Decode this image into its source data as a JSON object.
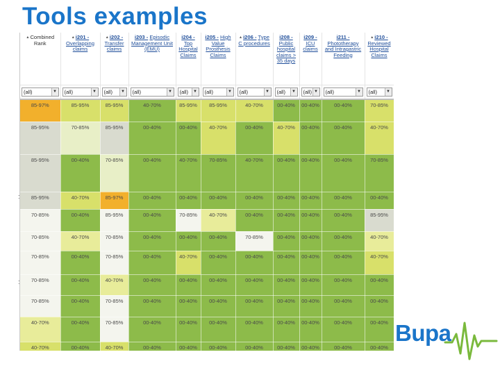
{
  "slide": {
    "title": "Tools examples"
  },
  "brand": {
    "name": "Bupa",
    "color": "#1a75c9",
    "line_color": "#7ab93c"
  },
  "table": {
    "headers": [
      {
        "code": "",
        "text": "Combined Rank",
        "link": false,
        "sortable": true
      },
      {
        "code": "i201 -",
        "text": "Overlapping claims",
        "link": true,
        "sortable": true
      },
      {
        "code": "i202 -",
        "text": "Transfer claims",
        "link": true,
        "sortable": true
      },
      {
        "code": "i203 -",
        "text": "Episodic Management Unit (EMU)",
        "link": true,
        "sortable": false
      },
      {
        "code": "i204 -",
        "text": "Top Hospital Claims",
        "link": true,
        "sortable": false
      },
      {
        "code": "i205 -",
        "text": "High Value Prosthesis Claims",
        "link": true,
        "sortable": false
      },
      {
        "code": "i206 -",
        "text": "Type C procedures",
        "link": true,
        "sortable": true
      },
      {
        "code": "i208 -",
        "text": "Public hospital claims > 35 days",
        "link": true,
        "sortable": false
      },
      {
        "code": "i209 -",
        "text": "ICU claims",
        "link": true,
        "sortable": false
      },
      {
        "code": "i211 -",
        "text": "Phototherapy and Intragastric Feeding",
        "link": true,
        "sortable": false
      },
      {
        "code": "i210 -",
        "text": "Reviewed Hospital Claims",
        "link": true,
        "sortable": true
      }
    ],
    "filters": [
      "(all)",
      "(all)",
      "(all)",
      "(all)",
      "(all)",
      "(all)",
      "(all)",
      "(all)",
      "(all)",
      "(all)",
      "(all)"
    ],
    "rows": [
      {
        "values": [
          "85-97%",
          "85-95%",
          "85-95%",
          "40-70%",
          "85-95%",
          "85-95%",
          "40-70%",
          "00-40%",
          "00-40%",
          "00-40%",
          "70-85%"
        ],
        "colors": [
          "orange",
          "yellow",
          "yellow",
          "green",
          "yellow",
          "yellow",
          "yellow",
          "green",
          "green",
          "green",
          "yellow"
        ]
      },
      {
        "values": [
          "85-95%",
          "70-85%",
          "85-95%",
          "00-40%",
          "00-40%",
          "40-70%",
          "00-40%",
          "40-70%",
          "00-40%",
          "00-40%",
          "40-70%"
        ],
        "colors": [
          "grey",
          "cream",
          "grey",
          "green",
          "green",
          "yellow",
          "green",
          "yellow",
          "green",
          "green",
          "yellow"
        ]
      },
      {
        "values": [
          "85-95%",
          "00-40%",
          "70-85%",
          "00-40%",
          "40-70%",
          "70-85%",
          "40-70%",
          "00-40%",
          "00-40%",
          "00-40%",
          "70-85%"
        ],
        "colors": [
          "grey",
          "green",
          "cream",
          "green",
          "green",
          "green",
          "green",
          "green",
          "green",
          "green",
          "green"
        ]
      },
      {
        "values": [
          "85-95%",
          "40-70%",
          "85-97%",
          "00-40%",
          "00-40%",
          "00-40%",
          "00-40%",
          "00-40%",
          "00-40%",
          "00-40%",
          "00-40%"
        ],
        "colors": [
          "grey",
          "yellow",
          "orange",
          "green",
          "green",
          "green",
          "green",
          "green",
          "green",
          "green",
          "green"
        ]
      },
      {
        "values": [
          "70-85%",
          "00-40%",
          "85-95%",
          "00-40%",
          "70-85%",
          "40-70%",
          "00-40%",
          "00-40%",
          "00-40%",
          "00-40%",
          "85-95%"
        ],
        "colors": [
          "white",
          "green",
          "white",
          "green",
          "white",
          "lyellow",
          "green",
          "green",
          "green",
          "green",
          "grey"
        ]
      },
      {
        "values": [
          "70-85%",
          "40-70%",
          "70-85%",
          "00-40%",
          "00-40%",
          "00-40%",
          "70-85%",
          "00-40%",
          "00-40%",
          "00-40%",
          "40-70%"
        ],
        "colors": [
          "white",
          "lyellow",
          "white",
          "green",
          "green",
          "green",
          "white",
          "green",
          "green",
          "green",
          "lyellow"
        ]
      },
      {
        "values": [
          "70-85%",
          "00-40%",
          "70-85%",
          "00-40%",
          "40-70%",
          "00-40%",
          "00-40%",
          "00-40%",
          "00-40%",
          "00-40%",
          "40-70%"
        ],
        "colors": [
          "white",
          "green",
          "white",
          "green",
          "yellow",
          "green",
          "green",
          "green",
          "green",
          "green",
          "yellow"
        ]
      },
      {
        "values": [
          "70-85%",
          "00-40%",
          "40-70%",
          "00-40%",
          "00-40%",
          "00-40%",
          "00-40%",
          "00-40%",
          "00-40%",
          "00-40%",
          "00-40%"
        ],
        "colors": [
          "white",
          "green",
          "lyellow",
          "green",
          "green",
          "green",
          "green",
          "green",
          "green",
          "green",
          "green"
        ]
      },
      {
        "values": [
          "70-85%",
          "00-40%",
          "70-85%",
          "00-40%",
          "00-40%",
          "00-40%",
          "00-40%",
          "00-40%",
          "00-40%",
          "00-40%",
          "00-40%"
        ],
        "colors": [
          "white",
          "green",
          "white",
          "green",
          "green",
          "green",
          "green",
          "green",
          "green",
          "green",
          "green"
        ]
      },
      {
        "values": [
          "40-70%",
          "00-40%",
          "70-85%",
          "00-40%",
          "00-40%",
          "00-40%",
          "00-40%",
          "00-40%",
          "00-40%",
          "00-40%",
          "00-40%"
        ],
        "colors": [
          "lyellow",
          "green",
          "white",
          "green",
          "green",
          "green",
          "green",
          "green",
          "green",
          "green",
          "green"
        ]
      },
      {
        "values": [
          "40-70%",
          "00-40%",
          "40-70%",
          "00-40%",
          "00-40%",
          "00-40%",
          "00-40%",
          "00-40%",
          "00-40%",
          "00-40%",
          "00-40%"
        ],
        "colors": [
          "yellow",
          "green",
          "yellow",
          "green",
          "green",
          "green",
          "green",
          "green",
          "green",
          "green",
          "green"
        ]
      }
    ]
  }
}
